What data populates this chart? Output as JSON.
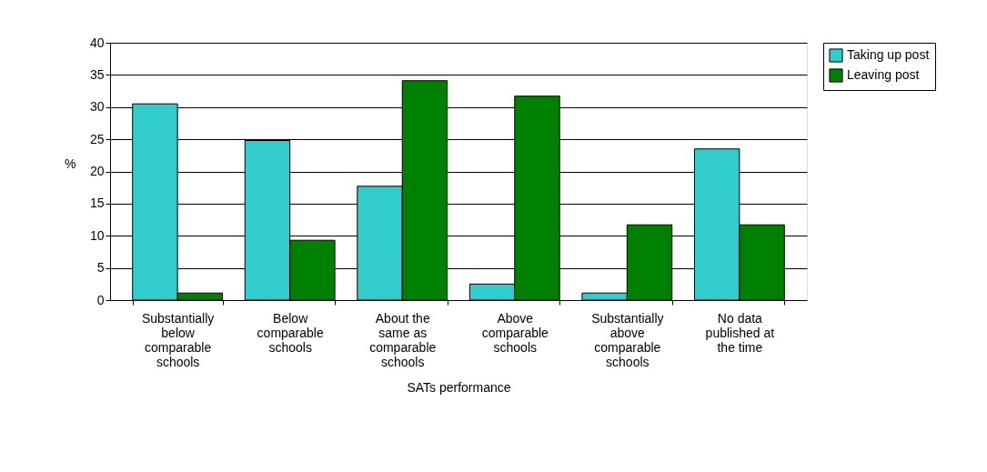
{
  "chart_data": {
    "type": "bar",
    "xlabel": "SATs performance",
    "ylabel": "%",
    "categories": [
      "Substantially below comparable schools",
      "Below comparable schools",
      "About the same as comparable schools",
      "Above comparable schools",
      "Substantially above comparable schools",
      "No data published at the time"
    ],
    "series": [
      {
        "name": "Taking up post",
        "color": "#33cccc",
        "values": [
          30.5,
          24.8,
          17.7,
          2.5,
          1.1,
          23.5
        ]
      },
      {
        "name": "Leaving post",
        "color": "#008000",
        "values": [
          1.1,
          9.3,
          34.1,
          31.7,
          11.7,
          11.7
        ]
      }
    ],
    "ylim": [
      0,
      40
    ],
    "yticks": [
      0,
      5,
      10,
      15,
      20,
      25,
      30,
      35,
      40
    ],
    "grid": "y",
    "legend": "right"
  }
}
